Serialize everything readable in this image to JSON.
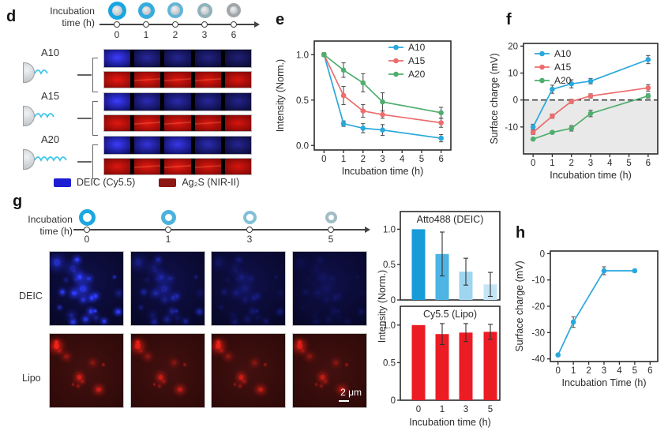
{
  "figure": {
    "panel_d": {
      "letter": "d",
      "timeline": {
        "label": [
          "Incubation",
          "time (h)"
        ],
        "ticks": [
          "0",
          "1",
          "2",
          "3",
          "6"
        ]
      },
      "rows": [
        {
          "label": "A10"
        },
        {
          "label": "A15"
        },
        {
          "label": "A20"
        }
      ],
      "legend": [
        {
          "label": "DEIC (Cy5.5)",
          "color": "#1d1ed2"
        },
        {
          "label": "Ag₂S (NIR-II)",
          "color": "#8c1713"
        }
      ]
    },
    "panel_e": {
      "letter": "e"
    },
    "panel_f": {
      "letter": "f"
    },
    "panel_g": {
      "letter": "g",
      "timeline": {
        "label": [
          "Incubation",
          "time (h)"
        ],
        "ticks": [
          "0",
          "1",
          "3",
          "5"
        ]
      },
      "row_labels": [
        "DEIC",
        "Lipo"
      ],
      "scale_bar": "2 μm"
    },
    "panel_h": {
      "letter": "h"
    }
  },
  "chart_data": [
    {
      "id": "e",
      "type": "line",
      "xlabel": "Incubation time (h)",
      "ylabel": "Intensity (Norm.)",
      "x": [
        0,
        1,
        2,
        3,
        6
      ],
      "series": [
        {
          "name": "A10",
          "color": "#29a8dc",
          "values": [
            1.0,
            0.24,
            0.19,
            0.17,
            0.08
          ],
          "errors": [
            0.02,
            0.03,
            0.05,
            0.06,
            0.04
          ]
        },
        {
          "name": "A15",
          "color": "#ec6d6e",
          "values": [
            1.0,
            0.55,
            0.38,
            0.34,
            0.25
          ],
          "errors": [
            0.02,
            0.1,
            0.07,
            0.04,
            0.05
          ]
        },
        {
          "name": "A20",
          "color": "#4fae6d",
          "values": [
            1.0,
            0.83,
            0.69,
            0.48,
            0.36
          ],
          "errors": [
            0.02,
            0.08,
            0.1,
            0.1,
            0.06
          ]
        }
      ],
      "xlim": [
        -0.5,
        6.5
      ],
      "xticks": [
        0,
        1,
        2,
        3,
        4,
        5,
        6
      ],
      "ylim": [
        -0.05,
        1.15
      ],
      "yticks": [
        0,
        0.5,
        1
      ],
      "ytick_labels": [
        "0.0",
        "0.5",
        "1.0"
      ],
      "legend_position": "top-right",
      "grid": false
    },
    {
      "id": "f",
      "type": "line",
      "xlabel": "Incubation time (h)",
      "ylabel": "Surface charge (mV)",
      "x": [
        0,
        1,
        2,
        3,
        6
      ],
      "series": [
        {
          "name": "A10",
          "color": "#29a8dc",
          "values": [
            -10,
            4,
            6,
            7,
            15
          ],
          "errors": [
            1.0,
            1.5,
            1.5,
            1.0,
            1.5
          ]
        },
        {
          "name": "A15",
          "color": "#ec6d6e",
          "values": [
            -12,
            -6,
            -0.5,
            1.5,
            4.5
          ],
          "errors": [
            0.8,
            0.8,
            0.8,
            0.8,
            1.2
          ]
        },
        {
          "name": "A20",
          "color": "#4fae6d",
          "values": [
            -14.5,
            -12,
            -10.5,
            -5,
            1.5
          ],
          "errors": [
            0.5,
            0.5,
            1.0,
            1.2,
            0.8
          ]
        }
      ],
      "xlim": [
        -0.5,
        6.5
      ],
      "xticks": [
        0,
        1,
        2,
        3,
        4,
        5,
        6
      ],
      "ylim": [
        -20,
        21
      ],
      "yticks": [
        -10,
        0,
        10,
        20
      ],
      "ytick_labels": [
        "-10",
        "0",
        "10",
        "20"
      ],
      "zero_line": "dashed",
      "shade_below_zero": true,
      "shade_color": "#e9e9e9",
      "legend_position": "top-left",
      "grid": false
    },
    {
      "id": "atto",
      "type": "bar",
      "title": "Atto488 (DEIC)",
      "categories": [
        "0",
        "1",
        "3",
        "5"
      ],
      "values": [
        1.0,
        0.65,
        0.4,
        0.22
      ],
      "errors": [
        0,
        0.31,
        0.19,
        0.17
      ],
      "bar_colors": [
        "#189cd8",
        "#4db4e4",
        "#9fd5ef",
        "#c4e5f6"
      ],
      "ylim": [
        0,
        1.25
      ],
      "yticks": [
        0,
        0.5,
        1
      ],
      "ytick_labels": [
        "0",
        "0.5",
        "1.0"
      ]
    },
    {
      "id": "cy",
      "type": "bar",
      "title": "Cy5.5 (Lipo)",
      "categories": [
        "0",
        "1",
        "3",
        "5"
      ],
      "values": [
        1.0,
        0.88,
        0.9,
        0.91
      ],
      "errors": [
        0,
        0.14,
        0.12,
        0.1
      ],
      "bar_colors": [
        "#ec1c24",
        "#ec1c24",
        "#ec1c24",
        "#ec1c24"
      ],
      "xlabel": "Incubation time (h)",
      "shared_ylabel": "Intensity (Norm.)",
      "ylim": [
        0,
        1.25
      ],
      "yticks": [
        0,
        0.5,
        1
      ],
      "ytick_labels": [
        "0",
        "0.5",
        "1.0"
      ]
    },
    {
      "id": "h",
      "type": "line",
      "xlabel": "Incubation Time (h)",
      "ylabel": "Surface charge (mV)",
      "x": [
        0,
        1,
        3,
        5
      ],
      "series": [
        {
          "name": "",
          "color": "#29a8dc",
          "values": [
            -38.5,
            -26,
            -6.5,
            -6.5
          ],
          "errors": [
            0.5,
            2.0,
            1.5,
            0.5
          ]
        }
      ],
      "xlim": [
        -0.5,
        6.5
      ],
      "xticks": [
        0,
        1,
        2,
        3,
        4,
        5,
        6
      ],
      "ylim": [
        -41,
        1
      ],
      "yticks": [
        -40,
        -30,
        -20,
        -10,
        0
      ],
      "ytick_labels": [
        "-40",
        "-30",
        "-20",
        "-10",
        "0"
      ],
      "legend_position": "none",
      "grid": false
    }
  ]
}
